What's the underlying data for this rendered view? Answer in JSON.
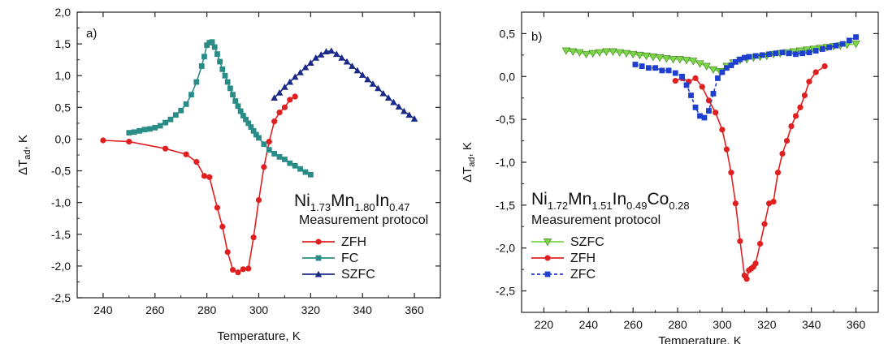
{
  "chart_data": [
    {
      "type": "line",
      "panel_label": "a)",
      "xlabel": "Temperature, K",
      "ylabel": {
        "main": "ΔT",
        "sub": "ad",
        "tail": ", K"
      },
      "xlim": [
        230,
        370
      ],
      "ylim": [
        -2.5,
        2.0
      ],
      "xticks": [
        240,
        260,
        280,
        300,
        320,
        340,
        360
      ],
      "yticks": [
        -2.5,
        -2.0,
        -1.5,
        -1.0,
        -0.5,
        0.0,
        0.5,
        1.0,
        1.5,
        2.0
      ],
      "ytick_labels": [
        "-2,5",
        "-2,0",
        "-1,5",
        "-1,0",
        "-0,5",
        "0,0",
        "0,5",
        "1,0",
        "1,5",
        "2,0"
      ],
      "grid": false,
      "compound": [
        {
          "t": "Ni",
          "s": "1.73"
        },
        {
          "t": "Mn",
          "s": "1.80"
        },
        {
          "t": "In",
          "s": "0.47"
        }
      ],
      "legend_title": "Measurement protocol",
      "legend_position": "bottom-right",
      "series": [
        {
          "name": "ZFH",
          "color": "#e02020",
          "marker": "circle",
          "dashed": false,
          "x": [
            240,
            250,
            264,
            272,
            276,
            279,
            281,
            284,
            286,
            288,
            290,
            292,
            294,
            296,
            298,
            300,
            302,
            304,
            306,
            308,
            310,
            312,
            314
          ],
          "y": [
            -0.02,
            -0.04,
            -0.15,
            -0.24,
            -0.36,
            -0.58,
            -0.6,
            -1.08,
            -1.38,
            -1.78,
            -2.06,
            -2.1,
            -2.05,
            -2.04,
            -1.55,
            -0.96,
            -0.44,
            -0.04,
            0.28,
            0.42,
            0.5,
            0.62,
            0.67
          ]
        },
        {
          "name": "FC",
          "color": "#2a8c86",
          "marker": "square",
          "dashed": false,
          "x": [
            250,
            252,
            254,
            256,
            258,
            260,
            262,
            264,
            266,
            268,
            270,
            272,
            274,
            276,
            278,
            279,
            280,
            281,
            282,
            283,
            284,
            285,
            286,
            287,
            288,
            289,
            290,
            291,
            292,
            293,
            294,
            295,
            296,
            297,
            298,
            299,
            300,
            302,
            304,
            306,
            308,
            310,
            312,
            314,
            316,
            318,
            320
          ],
          "y": [
            0.1,
            0.11,
            0.13,
            0.15,
            0.16,
            0.18,
            0.21,
            0.26,
            0.31,
            0.38,
            0.45,
            0.55,
            0.7,
            0.9,
            1.15,
            1.3,
            1.48,
            1.52,
            1.53,
            1.45,
            1.34,
            1.22,
            1.1,
            1.0,
            0.9,
            0.8,
            0.7,
            0.6,
            0.52,
            0.44,
            0.37,
            0.31,
            0.25,
            0.19,
            0.13,
            0.07,
            0.02,
            -0.08,
            -0.17,
            -0.23,
            -0.28,
            -0.32,
            -0.38,
            -0.42,
            -0.47,
            -0.52,
            -0.56
          ]
        },
        {
          "name": "SZFC",
          "color": "#1b2a8a",
          "marker": "triangle-up",
          "dashed": false,
          "x": [
            306,
            308,
            310,
            312,
            314,
            316,
            318,
            320,
            322,
            324,
            326,
            328,
            330,
            332,
            334,
            336,
            338,
            340,
            342,
            344,
            346,
            348,
            350,
            352,
            354,
            356,
            358,
            360
          ],
          "y": [
            0.65,
            0.73,
            0.82,
            0.9,
            0.98,
            1.05,
            1.13,
            1.2,
            1.28,
            1.33,
            1.38,
            1.39,
            1.34,
            1.28,
            1.22,
            1.15,
            1.08,
            1.01,
            0.94,
            0.87,
            0.8,
            0.72,
            0.65,
            0.58,
            0.51,
            0.44,
            0.38,
            0.32
          ]
        }
      ]
    },
    {
      "type": "line",
      "panel_label": "b)",
      "xlabel": "Temperature, K",
      "ylabel": {
        "main": "ΔT",
        "sub": "ad",
        "tail": ", K"
      },
      "xlim": [
        210,
        370
      ],
      "ylim": [
        -2.75,
        0.75
      ],
      "xticks": [
        220,
        240,
        260,
        280,
        300,
        320,
        340,
        360
      ],
      "yticks": [
        -2.5,
        -2.0,
        -1.5,
        -1.0,
        -0.5,
        0.0,
        0.5
      ],
      "ytick_labels": [
        "-2,5",
        "-2,0",
        "-1,5",
        "-1,0",
        "-0,5",
        "0,0",
        "0,5"
      ],
      "grid": false,
      "compound": [
        {
          "t": "Ni",
          "s": "1.72"
        },
        {
          "t": "Mn",
          "s": "1.51"
        },
        {
          "t": "In",
          "s": "0.49"
        },
        {
          "t": "Co",
          "s": "0.28"
        }
      ],
      "legend_title": "Measurement protocol",
      "legend_position": "bottom-left",
      "series": [
        {
          "name": "SZFC",
          "color": "#7cd84a",
          "marker": "triangle-down",
          "dashed": false,
          "x": [
            230,
            233,
            236,
            239,
            242,
            245,
            248,
            251,
            254,
            257,
            260,
            263,
            266,
            269,
            272,
            275,
            278,
            281,
            284,
            287,
            290,
            293,
            296,
            299,
            302,
            305,
            308,
            311,
            314,
            317,
            320,
            323,
            326,
            329,
            332,
            335,
            338,
            341,
            344,
            347,
            350,
            353,
            356,
            360
          ],
          "y": [
            0.3,
            0.29,
            0.28,
            0.26,
            0.27,
            0.28,
            0.29,
            0.29,
            0.28,
            0.27,
            0.26,
            0.25,
            0.24,
            0.23,
            0.22,
            0.21,
            0.2,
            0.2,
            0.19,
            0.18,
            0.15,
            0.12,
            0.08,
            0.06,
            0.12,
            0.16,
            0.19,
            0.2,
            0.22,
            0.23,
            0.24,
            0.26,
            0.27,
            0.28,
            0.29,
            0.3,
            0.31,
            0.32,
            0.33,
            0.34,
            0.35,
            0.36,
            0.37,
            0.38
          ]
        },
        {
          "name": "ZFH",
          "color": "#e02020",
          "marker": "circle",
          "dashed": false,
          "x": [
            279,
            282,
            285,
            288,
            291,
            294,
            297,
            300,
            302,
            304,
            306,
            308,
            310,
            311,
            312,
            313,
            314,
            315,
            317,
            319,
            321,
            323,
            325,
            327,
            329,
            331,
            333,
            335,
            337,
            339,
            342,
            346
          ],
          "y": [
            -0.05,
            -0.02,
            -0.06,
            -0.02,
            -0.12,
            -0.28,
            -0.42,
            -0.62,
            -0.85,
            -1.12,
            -1.48,
            -1.92,
            -2.32,
            -2.36,
            -2.26,
            -2.24,
            -2.22,
            -2.18,
            -1.95,
            -1.72,
            -1.48,
            -1.46,
            -1.12,
            -0.9,
            -0.75,
            -0.58,
            -0.46,
            -0.36,
            -0.22,
            -0.06,
            0.05,
            0.12
          ]
        },
        {
          "name": "ZFC",
          "color": "#1f3fd0",
          "marker": "square",
          "dashed": true,
          "x": [
            261,
            264,
            267,
            270,
            273,
            276,
            279,
            282,
            284,
            286,
            288,
            290,
            292,
            294,
            296,
            298,
            300,
            302,
            304,
            306,
            308,
            310,
            312,
            315,
            318,
            321,
            324,
            327,
            330,
            333,
            336,
            339,
            342,
            345,
            348,
            351,
            354,
            357,
            360
          ],
          "y": [
            0.14,
            0.12,
            0.1,
            0.1,
            0.07,
            0.07,
            0.04,
            0.0,
            -0.1,
            -0.22,
            -0.36,
            -0.46,
            -0.48,
            -0.4,
            -0.2,
            -0.02,
            0.05,
            0.1,
            0.13,
            0.17,
            0.2,
            0.22,
            0.23,
            0.24,
            0.25,
            0.26,
            0.27,
            0.28,
            0.27,
            0.26,
            0.27,
            0.28,
            0.3,
            0.32,
            0.34,
            0.36,
            0.38,
            0.42,
            0.46
          ]
        }
      ]
    }
  ]
}
